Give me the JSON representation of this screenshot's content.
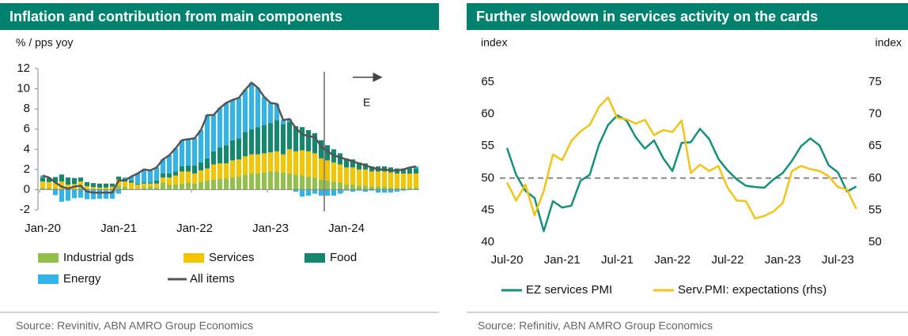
{
  "chart_data": [
    {
      "type": "bar",
      "stacked": true,
      "title": "Inflation and contribution from main components",
      "y_label": "% / pps yoy",
      "annotation": "E",
      "source": "Source: Revinitiv, ABN AMRO Group Economics",
      "categories": [
        "Jan-20",
        null,
        null,
        null,
        null,
        null,
        null,
        null,
        null,
        null,
        null,
        null,
        "Jan-21",
        null,
        null,
        null,
        null,
        null,
        null,
        null,
        null,
        null,
        null,
        null,
        "Jan-22",
        null,
        null,
        null,
        null,
        null,
        null,
        null,
        null,
        null,
        null,
        null,
        "Jan-23",
        null,
        null,
        null,
        null,
        null,
        null,
        null,
        null,
        null,
        null,
        null,
        "Jan-24",
        null,
        null,
        null,
        null,
        null,
        null,
        null,
        null,
        null,
        null,
        null
      ],
      "ylim": [
        -2,
        12
      ],
      "yticks": [
        -2,
        0,
        2,
        4,
        6,
        8,
        10,
        12
      ],
      "series": [
        {
          "name": "Industrial gds",
          "color": "#92c04a",
          "values": [
            0.2,
            0.15,
            0.15,
            0.1,
            0.1,
            0.05,
            0.4,
            0.05,
            0.05,
            0.0,
            -0.1,
            -0.1,
            0.4,
            0.3,
            0.1,
            0.1,
            0.2,
            0.3,
            0.2,
            0.7,
            0.5,
            0.5,
            0.6,
            0.7,
            0.6,
            0.8,
            0.9,
            1.0,
            1.1,
            1.1,
            1.2,
            1.3,
            1.5,
            1.6,
            1.6,
            1.7,
            1.8,
            1.8,
            1.7,
            1.6,
            1.5,
            1.4,
            1.3,
            1.2,
            1.0,
            0.9,
            0.8,
            0.7,
            0.5,
            0.5,
            0.4,
            0.4,
            0.3,
            0.3,
            0.3,
            0.2,
            0.2,
            0.2,
            0.2,
            0.2
          ]
        },
        {
          "name": "Services",
          "color": "#f5c400",
          "values": [
            0.6,
            0.6,
            0.6,
            0.7,
            0.4,
            0.5,
            0.4,
            0.3,
            0.2,
            0.2,
            0.2,
            0.3,
            0.6,
            0.5,
            0.6,
            0.4,
            0.4,
            0.3,
            0.4,
            0.5,
            0.7,
            0.9,
            1.2,
            1.1,
            1.0,
            1.1,
            1.2,
            1.5,
            1.5,
            1.5,
            1.7,
            1.7,
            1.8,
            1.9,
            1.9,
            1.9,
            1.9,
            2.0,
            1.8,
            2.4,
            2.3,
            2.5,
            2.5,
            2.4,
            2.1,
            2.0,
            1.9,
            1.8,
            1.7,
            1.7,
            1.6,
            1.6,
            1.5,
            1.5,
            1.5,
            1.5,
            1.4,
            1.4,
            1.4,
            1.4
          ]
        },
        {
          "name": "Food",
          "color": "#14876f",
          "values": [
            0.4,
            0.4,
            0.5,
            0.7,
            0.7,
            0.6,
            0.4,
            0.4,
            0.4,
            0.4,
            0.4,
            0.3,
            0.3,
            0.3,
            0.2,
            0.1,
            0.1,
            0.1,
            0.3,
            0.4,
            0.4,
            0.4,
            0.5,
            0.6,
            0.8,
            0.8,
            1.0,
            1.3,
            1.6,
            1.8,
            2.0,
            2.1,
            2.4,
            2.5,
            2.7,
            2.8,
            2.9,
            3.1,
            3.0,
            2.7,
            2.5,
            2.3,
            2.1,
            2.0,
            1.8,
            1.5,
            1.3,
            1.1,
            0.9,
            0.8,
            0.7,
            0.6,
            0.5,
            0.5,
            0.5,
            0.5,
            0.5,
            0.5,
            0.5,
            0.5
          ]
        },
        {
          "name": "Energy",
          "color": "#33b4e8",
          "values": [
            0.2,
            0.05,
            -0.55,
            -1.2,
            -1.1,
            -0.85,
            -0.8,
            -0.95,
            -0.95,
            -0.9,
            -0.8,
            -0.8,
            -0.4,
            0.1,
            0.4,
            1.0,
            1.3,
            1.2,
            1.3,
            1.4,
            1.8,
            2.3,
            2.6,
            2.6,
            2.7,
            3.2,
            4.3,
            3.6,
            3.9,
            4.2,
            4.0,
            4.0,
            4.2,
            4.6,
            3.9,
            2.8,
            2.0,
            1.6,
            0.4,
            0.3,
            -0.2,
            -0.7,
            -0.6,
            -0.4,
            -0.6,
            -0.6,
            -0.6,
            -0.4,
            -0.1,
            -0.2,
            -0.1,
            -0.2,
            -0.1,
            -0.3,
            -0.3,
            -0.3,
            -0.2,
            -0.1,
            0.1,
            0.2
          ]
        },
        {
          "name": "All items",
          "color": "#555555",
          "type": "line",
          "values": [
            1.4,
            1.2,
            0.7,
            0.3,
            0.1,
            0.3,
            0.4,
            -0.2,
            -0.3,
            -0.3,
            -0.3,
            -0.3,
            0.9,
            0.9,
            1.3,
            1.6,
            2.0,
            1.9,
            2.2,
            3.0,
            3.4,
            4.1,
            4.9,
            5.0,
            5.1,
            5.9,
            7.4,
            7.4,
            8.1,
            8.6,
            8.9,
            9.1,
            9.9,
            10.6,
            10.1,
            9.2,
            8.6,
            8.5,
            6.9,
            7.0,
            6.1,
            5.5,
            5.3,
            5.2,
            4.3,
            3.8,
            3.4,
            3.2,
            3.0,
            2.8,
            2.6,
            2.4,
            2.2,
            2.0,
            2.0,
            1.9,
            1.9,
            2.0,
            2.2,
            2.3
          ]
        }
      ]
    },
    {
      "type": "line",
      "title": "Further slowdown in services activity on the cards",
      "y_label": "index",
      "y2_label": "index",
      "source": "Source: Refinitiv, ABN AMRO Group Economics",
      "categories": [
        "Jul-20",
        null,
        null,
        null,
        null,
        null,
        "Jan-21",
        null,
        null,
        null,
        null,
        null,
        "Jul-21",
        null,
        null,
        null,
        null,
        null,
        "Jan-22",
        null,
        null,
        null,
        null,
        null,
        "Jul-22",
        null,
        null,
        null,
        null,
        null,
        "Jan-23",
        null,
        null,
        null,
        null,
        null,
        "Jul-23",
        null,
        null
      ],
      "ylim": [
        40,
        65
      ],
      "yticks": [
        40,
        45,
        50,
        55,
        60,
        65
      ],
      "y2lim": [
        50,
        75
      ],
      "y2ticks": [
        50,
        55,
        60,
        65,
        70,
        75
      ],
      "hline": 50,
      "series": [
        {
          "name": "EZ services PMI",
          "color": "#17907a",
          "values": [
            54.7,
            50.5,
            48.0,
            46.9,
            41.7,
            46.4,
            45.4,
            45.7,
            49.6,
            50.5,
            55.2,
            58.3,
            59.8,
            59.0,
            56.4,
            54.6,
            55.9,
            53.1,
            51.1,
            55.5,
            55.6,
            57.7,
            56.1,
            53.0,
            51.2,
            49.8,
            48.8,
            48.6,
            48.5,
            49.8,
            50.8,
            52.7,
            55.0,
            56.2,
            55.1,
            52.0,
            50.9,
            47.9,
            48.7
          ]
        },
        {
          "name": "Serv.PMI: expectations (rhs)",
          "color": "#f2c318",
          "axis": "y2",
          "values": [
            59.3,
            56.5,
            59.0,
            54.2,
            58.0,
            63.7,
            62.8,
            65.8,
            67.3,
            68.3,
            71.1,
            72.6,
            69.4,
            69.2,
            68.5,
            69.1,
            66.7,
            67.5,
            67.2,
            69.0,
            60.8,
            62.1,
            61.1,
            61.9,
            58.5,
            56.5,
            56.4,
            53.7,
            54.1,
            54.8,
            56.1,
            61.1,
            61.9,
            61.4,
            61.1,
            60.3,
            58.6,
            58.2,
            55.2
          ]
        }
      ]
    }
  ]
}
